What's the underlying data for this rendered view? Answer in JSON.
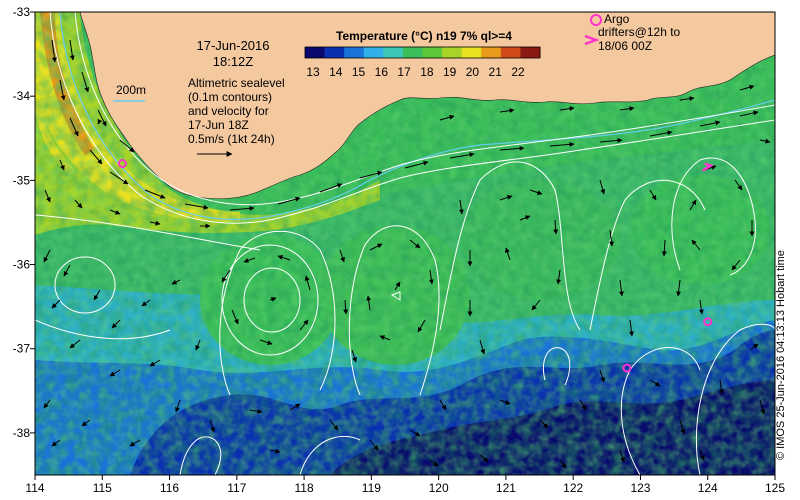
{
  "title": {
    "date": "17-Jun-2016",
    "time": "18:12Z"
  },
  "colorbar": {
    "title": "Temperature (°C) n19 7% ql>=4",
    "ticks": [
      13,
      14,
      15,
      16,
      17,
      18,
      19,
      20,
      21,
      22
    ],
    "colors": [
      "#08086e",
      "#0a2fb0",
      "#1a73d9",
      "#2fb0e8",
      "#3cc8b4",
      "#3cbf5a",
      "#5cc83a",
      "#a8d42a",
      "#e8e020",
      "#e89a1a",
      "#d2491a",
      "#8a1a12"
    ]
  },
  "legend": {
    "isobath": "200m",
    "altimetry_lines": [
      "Altimetric sealevel",
      "(0.1m contours)",
      "and velocity for",
      "17-Jun 18Z",
      "0.5m/s (1kt 24h)"
    ],
    "argo": "Argo",
    "drifters_lines": [
      "drifters@12h to",
      "18/06 00Z"
    ]
  },
  "axes": {
    "lon_ticks": [
      "114",
      "115",
      "116",
      "117",
      "118",
      "119",
      "120",
      "121",
      "122",
      "123",
      "124",
      "125"
    ],
    "lat_ticks": [
      "-33",
      "-34",
      "-35",
      "-36",
      "-37",
      "-38"
    ],
    "lon_range": [
      114,
      125
    ],
    "lat_range": [
      -38.5,
      -33
    ]
  },
  "credit": "© IMOS 25-Jun-2016 04:13:13 Hobart time",
  "colors": {
    "land": "#f5c9a0",
    "isobath": "#66ccee",
    "contour": "#ffffff",
    "argo": "#ff33cc",
    "drifter": "#ff33cc"
  },
  "argo_floats": [
    {
      "lon": 115.3,
      "lat": -34.8
    },
    {
      "lon": 122.8,
      "lat": -37.23
    },
    {
      "lon": 124.0,
      "lat": -36.68
    }
  ],
  "drifters": [
    {
      "lon": 124.0,
      "lat": -34.85
    }
  ]
}
